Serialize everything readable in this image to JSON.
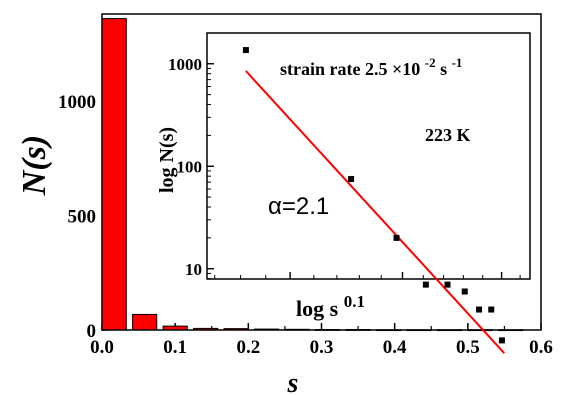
{
  "chart_data": [
    {
      "type": "bar",
      "xlabel": "s",
      "ylabel": "N(s)",
      "xlim": [
        0.0,
        0.6
      ],
      "ylim": [
        0,
        1380
      ],
      "xticks": [
        "0.0",
        "0.1",
        "0.2",
        "0.3",
        "0.4",
        "0.5",
        "0.6"
      ],
      "yticks": [
        "0",
        "500",
        "1000"
      ],
      "bar_color": "#ff0000",
      "bar_width": 0.033,
      "categories": [
        0.0167,
        0.0583,
        0.1,
        0.1417,
        0.1833,
        0.225,
        0.2667,
        0.3083,
        0.35,
        0.3917,
        0.4333,
        0.475,
        0.5167,
        0.5583
      ],
      "values": [
        1360,
        68,
        17,
        7,
        6,
        4,
        3,
        2,
        2,
        1,
        1,
        1,
        1,
        1
      ]
    },
    {
      "type": "scatter",
      "scale": "log-log",
      "xlabel": "log s",
      "xlabel_exponent": "0.1",
      "ylabel": "log N(s)",
      "yticks": [
        "10",
        "100",
        "1000"
      ],
      "y_decade_range": [
        0.9,
        3.3
      ],
      "marker_color": "#000000",
      "fit_line_color": "#ff0000",
      "points": [
        {
          "s": 0.0167,
          "N": 1360
        },
        {
          "s": 0.0583,
          "N": 75
        },
        {
          "s": 0.1,
          "N": 20
        },
        {
          "s": 0.1417,
          "N": 7
        },
        {
          "s": 0.1833,
          "N": 7
        },
        {
          "s": 0.225,
          "N": 6
        },
        {
          "s": 0.2667,
          "N": 4
        },
        {
          "s": 0.3083,
          "N": 4
        },
        {
          "s": 0.35,
          "N": 2
        }
      ],
      "fit_line": [
        {
          "s": 0.0167,
          "N": 850
        },
        {
          "s": 0.36,
          "N": 1.5
        }
      ],
      "annotations": {
        "strain_rate": "strain rate 2.5 ×10",
        "strain_exp": "-2",
        "strain_unit": " s",
        "strain_unit_exp": "-1",
        "temperature": "223 K",
        "alpha": "α=2.1"
      }
    }
  ]
}
